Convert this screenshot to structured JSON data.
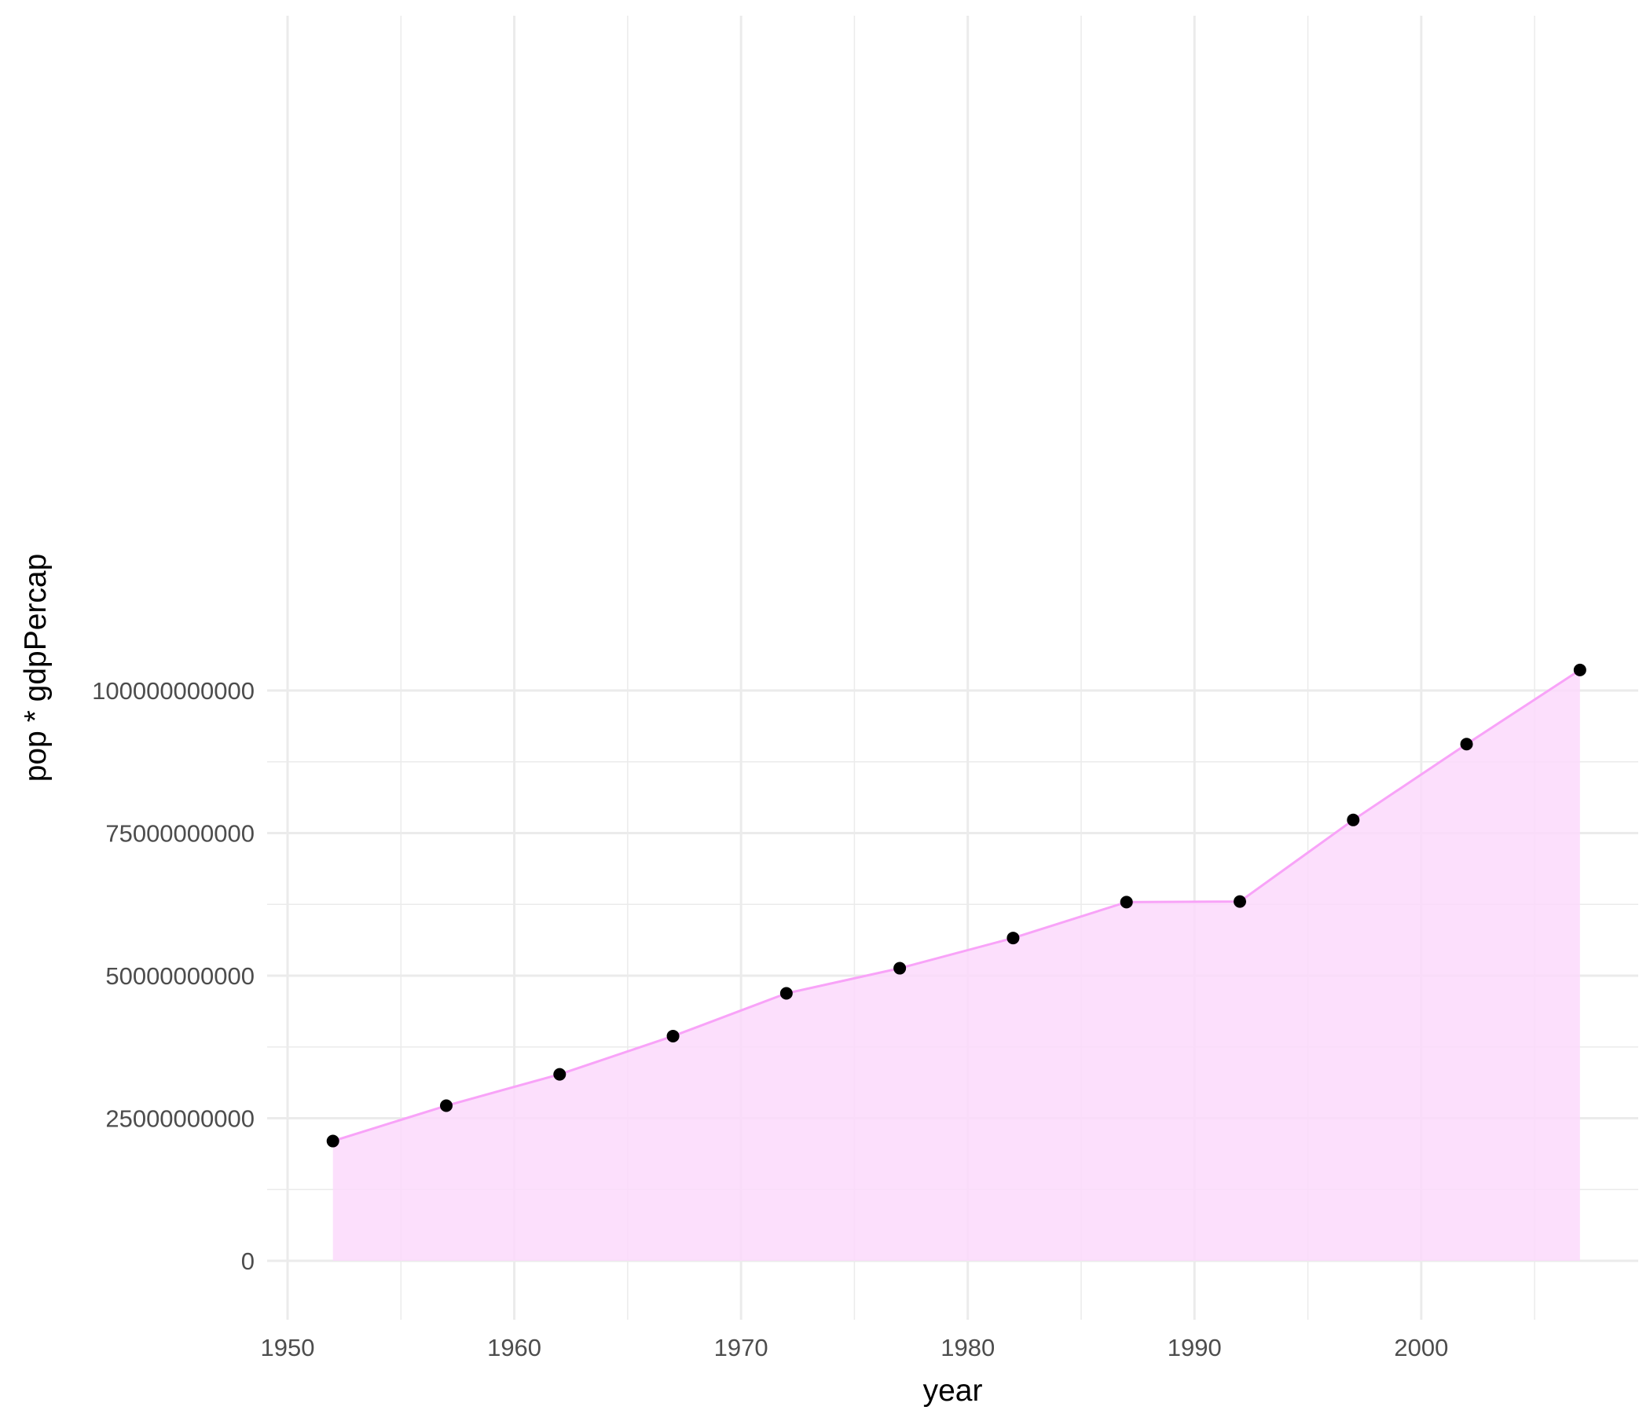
{
  "chart_data": {
    "type": "area",
    "title": "",
    "xlabel": "year",
    "ylabel": "pop * gdpPercap",
    "xlim": [
      1950,
      2007
    ],
    "ylim": [
      0,
      100000000000
    ],
    "x_ticks": [
      1950,
      1960,
      1970,
      1980,
      1990,
      2000
    ],
    "x_tick_labels": [
      "1950",
      "1960",
      "1970",
      "1980",
      "1990",
      "2000"
    ],
    "y_ticks": [
      0,
      25000000000,
      50000000000,
      75000000000,
      100000000000
    ],
    "y_tick_labels": [
      "0",
      "25000000000",
      "50000000000",
      "75000000000",
      "100000000000"
    ],
    "grid": true,
    "legend": "none",
    "colors": {
      "fill": "#fcd9fc",
      "line": "#f8a3f8",
      "point": "#000000",
      "grid": "#ebebeb"
    },
    "series": [
      {
        "x": [
          1952,
          1957,
          1962,
          1967,
          1972,
          1977,
          1982,
          1987,
          1992,
          1997,
          2002,
          2007
        ],
        "values": [
          21000000000,
          27200000000,
          32700000000,
          39400000000,
          46900000000,
          51300000000,
          56600000000,
          62900000000,
          63000000000,
          77300000000,
          90600000000,
          103600000000
        ]
      }
    ]
  }
}
